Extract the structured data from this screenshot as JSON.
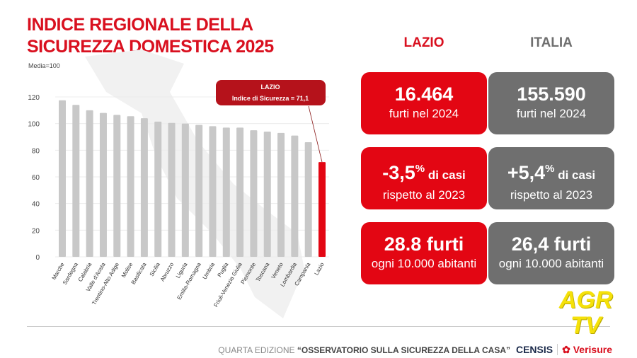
{
  "title_line1": "INDICE REGIONALE DELLA",
  "title_line2": "SICUREZZA DOMESTICA 2025",
  "chart_data": {
    "type": "bar",
    "title": "Indice regionale della sicurezza domestica 2025",
    "ylabel": "Media=100",
    "ylim": [
      0,
      120
    ],
    "yticks": [
      0,
      20,
      40,
      60,
      80,
      100,
      120
    ],
    "grid": true,
    "categories": [
      "Marche",
      "Sardegna",
      "Calabria",
      "Valle d'Aosta",
      "Trentino-Alto Adige",
      "Molise",
      "Basilicata",
      "Sicilia",
      "Abruzzo",
      "Liguria",
      "Emilia-Romagna",
      "Umbria",
      "Puglia",
      "Friuli-Venezia Giulia",
      "Piemonte",
      "Toscana",
      "Veneto",
      "Lombardia",
      "Campania",
      "Lazio"
    ],
    "values": [
      117.5,
      114,
      110,
      108,
      106.5,
      105.5,
      104,
      101.5,
      100.5,
      100,
      99,
      98,
      97,
      97,
      95,
      94,
      93,
      91,
      86,
      71.1
    ],
    "highlight": "Lazio",
    "colors": {
      "default": "#c8c8c8",
      "highlight": "#e30613",
      "callout": "#b5121b"
    },
    "annotation": {
      "line1": "LAZIO",
      "line2": "Indice di Sicurezza = 71,1"
    }
  },
  "columns": {
    "lazio": "LAZIO",
    "italia": "ITALIA"
  },
  "cards": {
    "lazio": [
      {
        "big": "16.464",
        "sub": "furti nel 2024"
      },
      {
        "big": "-3,5",
        "sup": "%",
        "small": " di casi",
        "sub": "rispetto al 2023"
      },
      {
        "big": "28.8 furti",
        "sub": "ogni 10.000 abitanti"
      }
    ],
    "italia": [
      {
        "big": "155.590",
        "sub": "furti nel 2024"
      },
      {
        "big": "+5,4",
        "sup": "%",
        "small": " di casi",
        "sub": "rispetto al 2023"
      },
      {
        "big": "26,4 furti",
        "sub": "ogni 10.000 abitanti"
      }
    ]
  },
  "footer": {
    "prefix": "QUARTA EDIZIONE ",
    "bold": "“OSSERVATORIO SULLA SICUREZZA DELLA CASA”",
    "censis": "CENSIS",
    "verisure": "Verisure"
  },
  "watermark": {
    "line1": "AGR",
    "line2": "TV"
  }
}
